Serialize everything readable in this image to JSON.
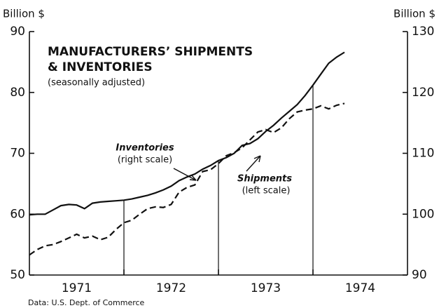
{
  "chart_data": {
    "type": "line",
    "title": [
      "MANUFACTURERS’ SHIPMENTS",
      "& INVENTORIES"
    ],
    "subtitle": "(seasonally adjusted)",
    "y_label": "Billion $",
    "y2_label": "Billion $",
    "source": "Data:  U.S. Dept. of Commerce",
    "annotations": [
      {
        "name": "Inventories",
        "note": "(right scale)"
      },
      {
        "name": "Shipments",
        "note": "(left scale)"
      }
    ],
    "x": [
      1971.0,
      1971.083,
      1971.167,
      1971.25,
      1971.333,
      1971.417,
      1971.5,
      1971.583,
      1971.667,
      1971.75,
      1971.833,
      1971.917,
      1972.0,
      1972.083,
      1972.167,
      1972.25,
      1972.333,
      1972.417,
      1972.5,
      1972.583,
      1972.667,
      1972.75,
      1972.833,
      1972.917,
      1973.0,
      1973.083,
      1973.167,
      1973.25,
      1973.333,
      1973.417,
      1973.5,
      1973.583,
      1973.667,
      1973.75,
      1973.833,
      1973.917,
      1974.0,
      1974.083,
      1974.167,
      1974.25,
      1974.333
    ],
    "series": [
      {
        "name": "Shipments",
        "axis": "y",
        "color": "#111111",
        "line_style": "dashed",
        "values": [
          53.3,
          54.2,
          54.8,
          55.0,
          55.5,
          56.1,
          56.7,
          56.1,
          56.4,
          55.8,
          56.2,
          57.5,
          58.6,
          59.0,
          60.0,
          60.9,
          61.2,
          61.1,
          61.6,
          63.6,
          64.4,
          64.8,
          67.0,
          67.3,
          68.3,
          69.6,
          70.1,
          70.9,
          72.2,
          73.5,
          73.9,
          73.4,
          74.2,
          75.7,
          76.8,
          77.1,
          77.3,
          77.8,
          77.3,
          77.9,
          78.2
        ]
      },
      {
        "name": "Inventories",
        "axis": "y2",
        "color": "#111111",
        "line_style": "solid",
        "values": [
          99.9,
          100.0,
          100.0,
          100.7,
          101.4,
          101.6,
          101.5,
          100.9,
          101.8,
          102.0,
          102.1,
          102.2,
          102.3,
          102.5,
          102.8,
          103.1,
          103.5,
          104.0,
          104.6,
          105.5,
          106.1,
          106.6,
          107.4,
          108.0,
          108.8,
          109.3,
          110.0,
          111.3,
          111.6,
          112.4,
          113.6,
          114.6,
          115.8,
          116.9,
          118.0,
          119.5,
          121.2,
          123.0,
          124.8,
          125.8,
          126.6
        ]
      }
    ],
    "xlim": [
      1971,
      1975
    ],
    "xticks": [
      {
        "value": 1971.5,
        "label": "1971"
      },
      {
        "value": 1972.5,
        "label": "1972"
      },
      {
        "value": 1973.5,
        "label": "1973"
      },
      {
        "value": 1974.5,
        "label": "1974"
      }
    ],
    "year_boundaries": [
      1972,
      1973,
      1974
    ],
    "ylim": [
      50,
      90
    ],
    "yticks": [
      50,
      60,
      70,
      80,
      90
    ],
    "y2lim": [
      90,
      130
    ],
    "y2ticks": [
      90,
      100,
      110,
      120,
      130
    ]
  }
}
